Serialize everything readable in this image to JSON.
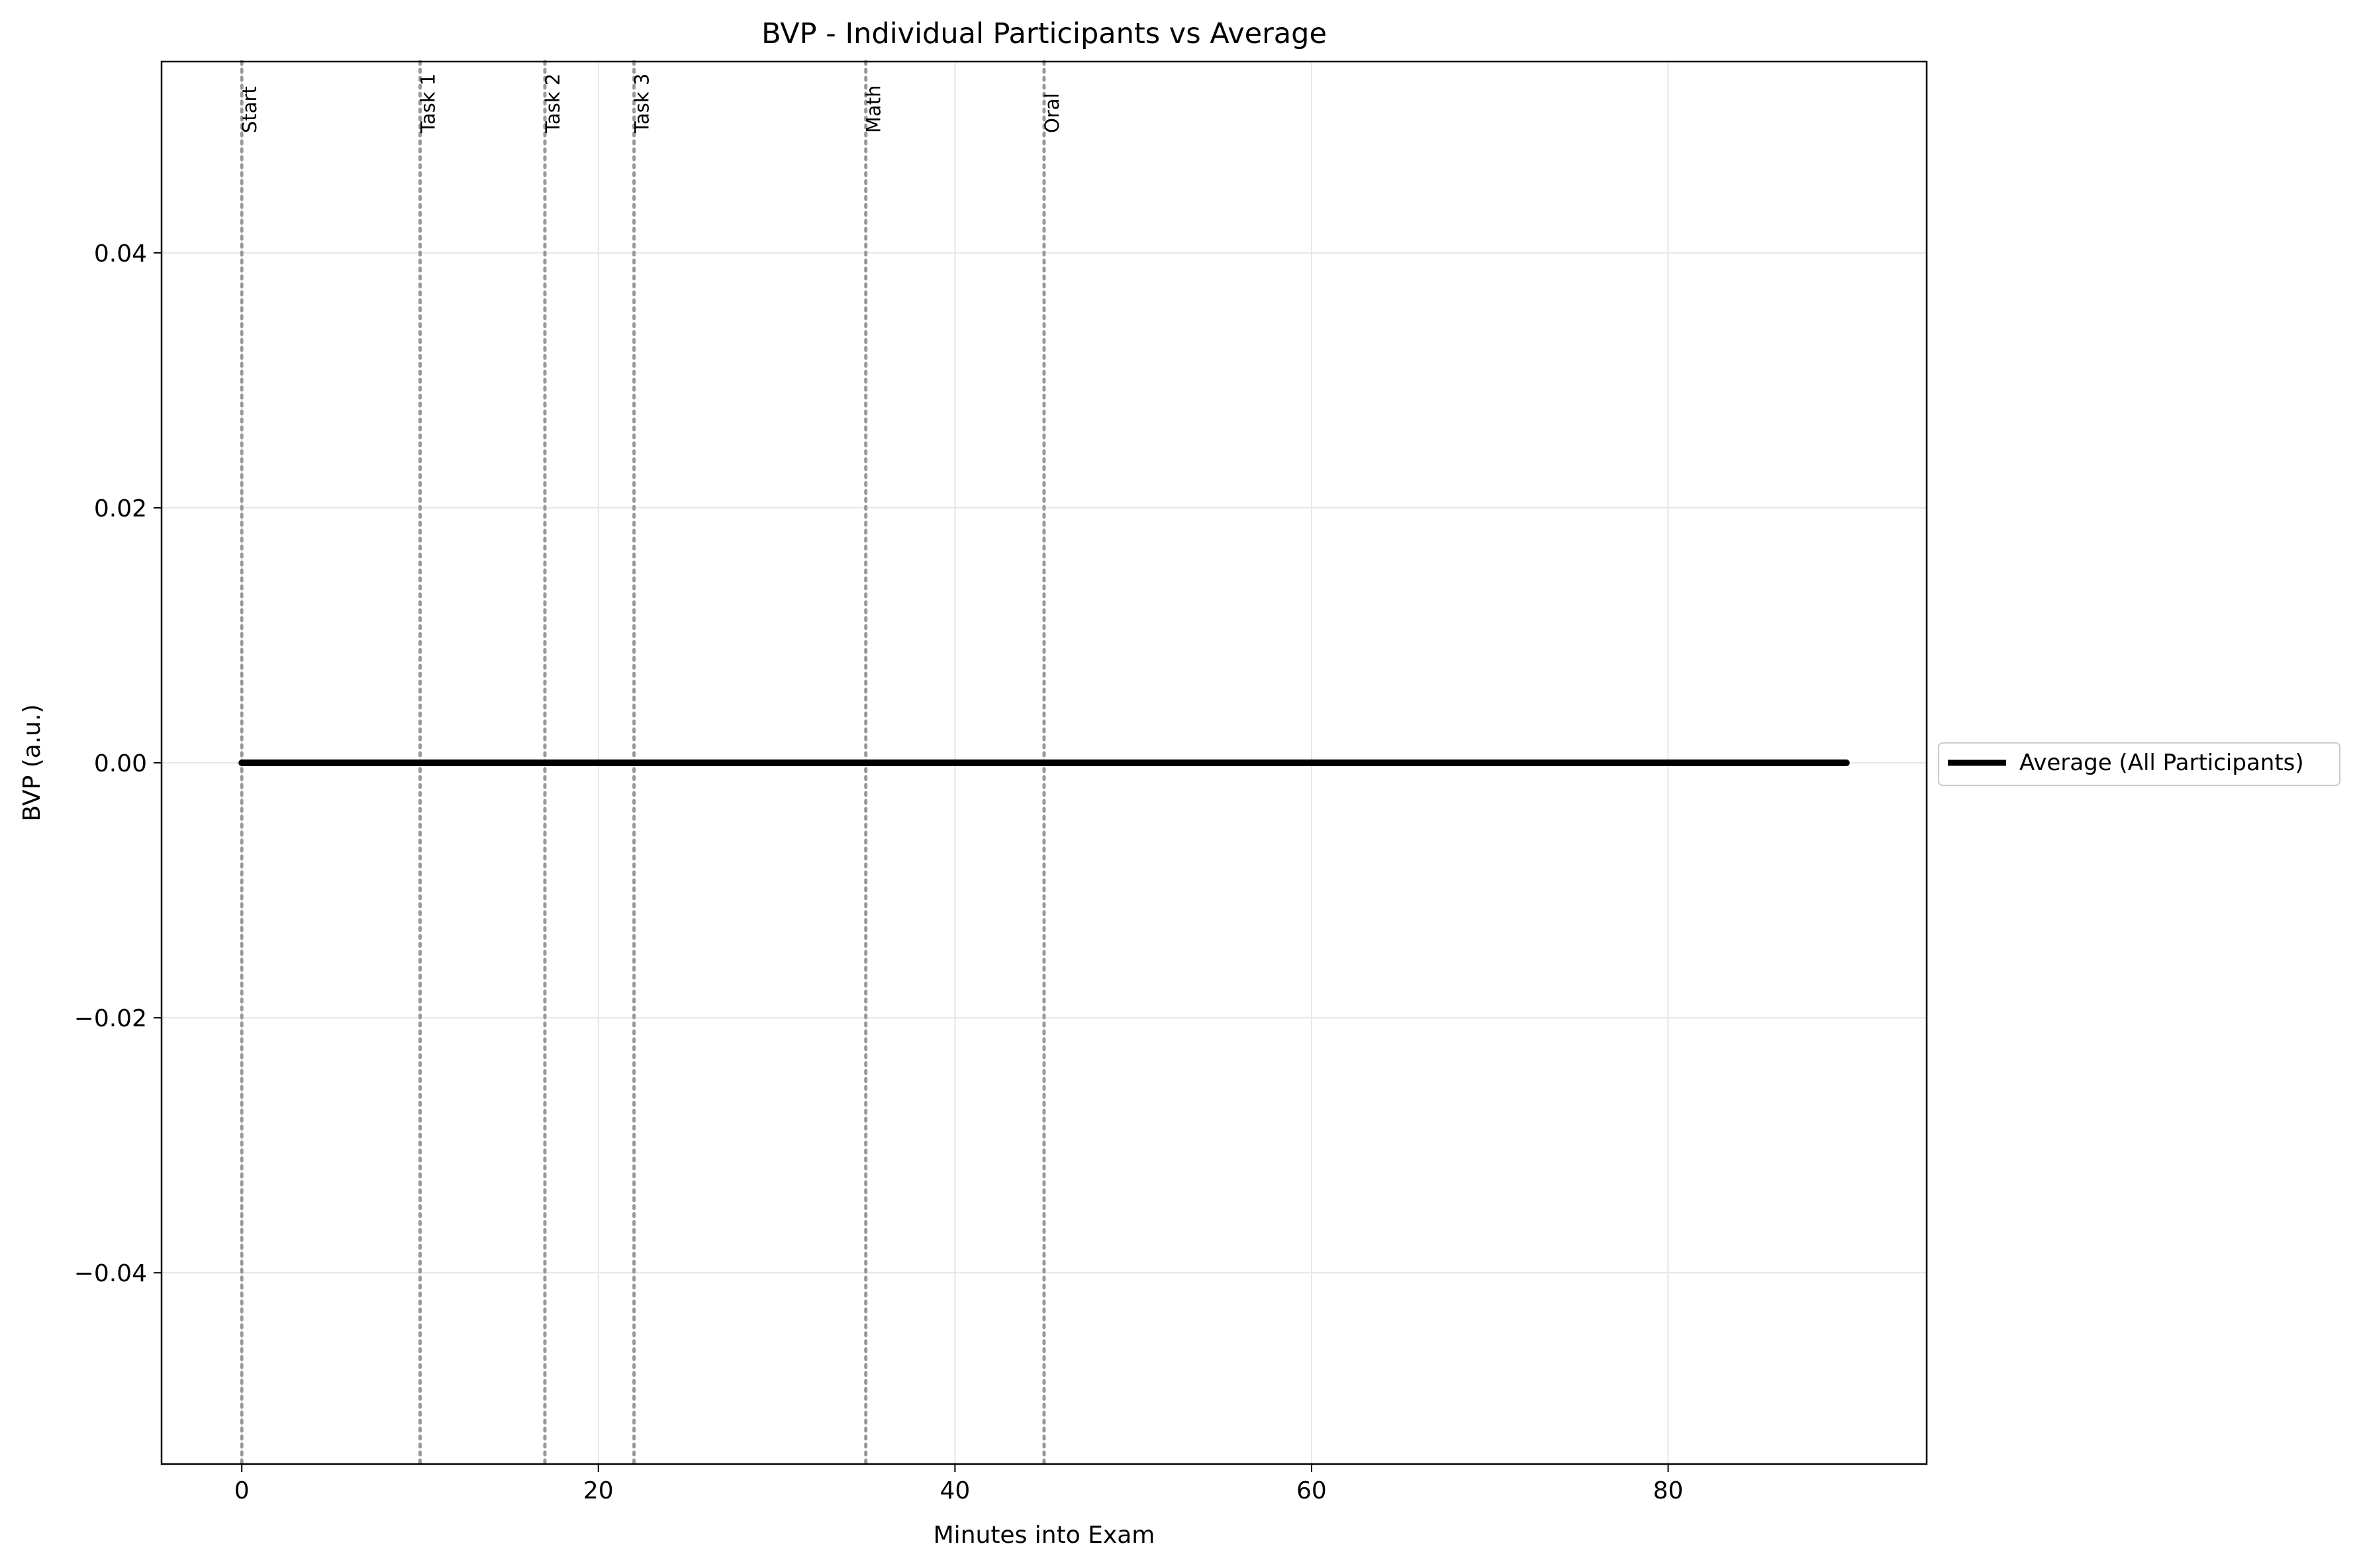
{
  "chart_data": {
    "type": "line",
    "title": "BVP - Individual Participants vs Average",
    "xlabel": "Minutes into Exam",
    "ylabel": "BVP (a.u.)",
    "xlim": [
      -4.5,
      94.5
    ],
    "ylim": [
      -0.055,
      0.055
    ],
    "xticks": [
      0,
      20,
      40,
      60,
      80
    ],
    "xtick_labels": [
      "0",
      "20",
      "40",
      "60",
      "80"
    ],
    "yticks": [
      0.04,
      0.02,
      0.0,
      -0.02,
      -0.04
    ],
    "ytick_labels": [
      "0.04",
      "0.02",
      "0.00",
      "−0.02",
      "−0.04"
    ],
    "grid": true,
    "series": [
      {
        "name": "Average (All Participants)",
        "color": "#000000",
        "x": [
          0,
          90
        ],
        "values": [
          0.0,
          0.0
        ]
      }
    ],
    "events": [
      {
        "label": "Start",
        "x": 0
      },
      {
        "label": "Task 1",
        "x": 10
      },
      {
        "label": "Task 2",
        "x": 17
      },
      {
        "label": "Task 3",
        "x": 22
      },
      {
        "label": "Math",
        "x": 35
      },
      {
        "label": "Oral",
        "x": 45
      }
    ],
    "event_line_color": "#999999",
    "legend": {
      "placement": "outside-right",
      "entries": [
        "Average (All Participants)"
      ]
    }
  }
}
